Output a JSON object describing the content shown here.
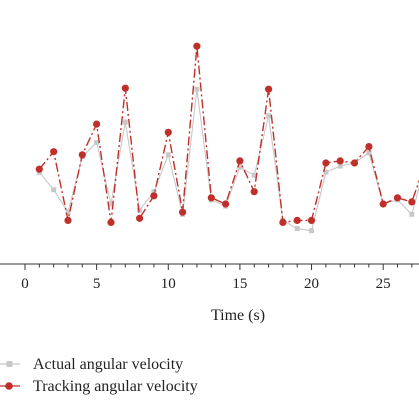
{
  "chart_data": {
    "type": "line",
    "title": "",
    "xlabel": "Time (s)",
    "ylabel": "",
    "xlim": [
      0,
      27.5
    ],
    "ylim": [
      0,
      1
    ],
    "xticks": [
      "0",
      "5",
      "10",
      "15",
      "20",
      "25"
    ],
    "xtick_values": [
      0,
      5,
      10,
      15,
      20,
      25
    ],
    "grid": false,
    "legend_position": "bottom-left",
    "series": [
      {
        "name": "Actual angular velocity",
        "color": "#c8c8c8",
        "style": "solid-square",
        "x": [
          1,
          2,
          3,
          4,
          5,
          6,
          7,
          8,
          9,
          10,
          11,
          12,
          13,
          14,
          15,
          16,
          17,
          18,
          19,
          20,
          21,
          22,
          23,
          24,
          25,
          26,
          27,
          28
        ],
        "y": [
          0.355,
          0.27,
          0.16,
          0.43,
          0.5,
          0.2,
          0.6,
          0.17,
          0.26,
          0.44,
          0.15,
          0.76,
          0.22,
          0.19,
          0.38,
          0.34,
          0.63,
          0.12,
          0.08,
          0.07,
          0.355,
          0.385,
          0.4,
          0.45,
          0.2,
          0.22,
          0.15,
          0.41
        ]
      },
      {
        "name": "Tracking angular velocity",
        "color": "#c0302a",
        "style": "dash-dot-circle",
        "x": [
          1,
          2,
          3,
          4,
          5,
          6,
          7,
          8,
          9,
          10,
          11,
          12,
          13,
          14,
          15,
          16,
          17,
          18,
          19,
          20,
          21,
          22,
          23,
          24,
          25,
          26,
          27,
          28
        ],
        "y": [
          0.37,
          0.455,
          0.12,
          0.44,
          0.59,
          0.11,
          0.765,
          0.13,
          0.24,
          0.55,
          0.16,
          0.97,
          0.23,
          0.2,
          0.41,
          0.26,
          0.76,
          0.11,
          0.12,
          0.12,
          0.4,
          0.41,
          0.4,
          0.48,
          0.2,
          0.23,
          0.21,
          0.41
        ]
      }
    ]
  }
}
